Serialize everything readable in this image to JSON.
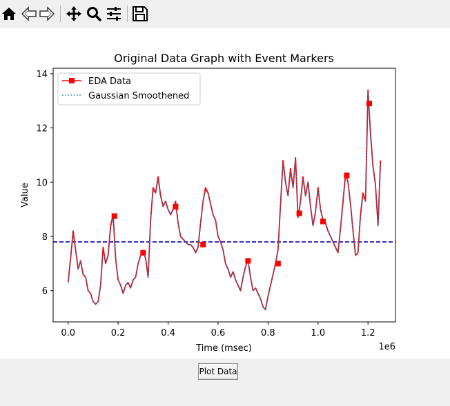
{
  "toolbar": {
    "buttons": [
      {
        "icon": "home-icon"
      },
      {
        "icon": "back-arrow-icon"
      },
      {
        "icon": "forward-arrow-icon"
      },
      {
        "icon": "pan-move-icon"
      },
      {
        "icon": "zoom-magnifier-icon"
      },
      {
        "icon": "configure-subplots-icon"
      },
      {
        "icon": "save-floppy-icon"
      }
    ]
  },
  "plot_button_label": "Plot Data",
  "chart_data": {
    "type": "line",
    "title": "Original Data Graph with Event Markers",
    "xlabel": "Time (msec)",
    "ylabel": "Value",
    "x_offset_text": "1e6",
    "xlim": [
      -0.06,
      1.31
    ],
    "ylim": [
      4.85,
      14.2
    ],
    "xticks": [
      0.0,
      0.2,
      0.4,
      0.6,
      0.8,
      1.0,
      1.2
    ],
    "xtick_labels": [
      "0.0",
      "0.2",
      "0.4",
      "0.6",
      "0.8",
      "1.0",
      "1.2"
    ],
    "yticks": [
      6,
      8,
      10,
      12,
      14
    ],
    "ytick_labels": [
      "6",
      "8",
      "10",
      "12",
      "14"
    ],
    "grid": false,
    "legend_position": "upper-left",
    "threshold_line": {
      "value": 7.8,
      "color": "#0000bf",
      "style": "dashed"
    },
    "series": [
      {
        "name": "EDA Data",
        "color": "#ff0000",
        "style": "solid",
        "marker": "square",
        "x": [
          0.0,
          0.01,
          0.02,
          0.03,
          0.04,
          0.05,
          0.06,
          0.07,
          0.08,
          0.09,
          0.1,
          0.11,
          0.12,
          0.13,
          0.14,
          0.15,
          0.16,
          0.17,
          0.18,
          0.19,
          0.2,
          0.21,
          0.22,
          0.23,
          0.24,
          0.25,
          0.26,
          0.27,
          0.28,
          0.29,
          0.3,
          0.31,
          0.32,
          0.33,
          0.34,
          0.35,
          0.36,
          0.37,
          0.38,
          0.39,
          0.4,
          0.41,
          0.42,
          0.43,
          0.44,
          0.45,
          0.46,
          0.47,
          0.48,
          0.49,
          0.5,
          0.51,
          0.52,
          0.53,
          0.54,
          0.55,
          0.56,
          0.57,
          0.58,
          0.59,
          0.6,
          0.61,
          0.62,
          0.63,
          0.64,
          0.65,
          0.66,
          0.67,
          0.68,
          0.69,
          0.7,
          0.71,
          0.72,
          0.73,
          0.74,
          0.75,
          0.76,
          0.77,
          0.78,
          0.79,
          0.8,
          0.81,
          0.82,
          0.83,
          0.84,
          0.85,
          0.86,
          0.87,
          0.88,
          0.89,
          0.9,
          0.91,
          0.92,
          0.93,
          0.94,
          0.95,
          0.96,
          0.97,
          0.98,
          0.99,
          1.0,
          1.01,
          1.02,
          1.03,
          1.04,
          1.05,
          1.06,
          1.07,
          1.08,
          1.09,
          1.1,
          1.11,
          1.12,
          1.13,
          1.14,
          1.15,
          1.16,
          1.17,
          1.18,
          1.19,
          1.2,
          1.21,
          1.22,
          1.23,
          1.24,
          1.25
        ],
        "y": [
          6.3,
          7.2,
          8.2,
          7.5,
          6.8,
          7.1,
          6.6,
          6.5,
          6.0,
          5.9,
          5.6,
          5.5,
          5.6,
          6.2,
          7.6,
          7.0,
          7.3,
          8.4,
          8.8,
          7.2,
          6.4,
          6.2,
          5.9,
          6.2,
          6.3,
          6.1,
          6.4,
          6.5,
          7.0,
          7.3,
          7.4,
          7.2,
          6.5,
          8.6,
          9.8,
          9.6,
          10.2,
          9.5,
          9.1,
          9.3,
          9.0,
          8.8,
          9.0,
          9.3,
          8.5,
          8.0,
          7.9,
          7.8,
          7.7,
          7.7,
          7.6,
          7.4,
          7.6,
          8.5,
          9.3,
          9.8,
          9.6,
          9.2,
          8.8,
          8.6,
          8.0,
          7.8,
          7.5,
          7.0,
          6.8,
          6.5,
          6.7,
          6.4,
          6.2,
          6.0,
          6.5,
          6.9,
          7.1,
          6.5,
          6.0,
          6.1,
          5.9,
          5.7,
          5.4,
          5.3,
          5.8,
          6.2,
          6.6,
          7.0,
          7.5,
          9.2,
          10.8,
          10.0,
          9.5,
          10.5,
          9.8,
          10.9,
          8.7,
          9.3,
          10.2,
          9.5,
          10.0,
          9.1,
          8.4,
          8.9,
          9.8,
          9.0,
          8.6,
          8.5,
          8.2,
          8.0,
          7.8,
          7.6,
          7.4,
          8.3,
          9.3,
          10.3,
          10.0,
          9.2,
          8.2,
          7.3,
          7.4,
          8.8,
          9.6,
          9.3,
          13.4,
          11.8,
          10.6,
          9.9,
          8.4,
          10.8
        ]
      },
      {
        "name": "Gaussian Smoothened",
        "color": "#1f77b4",
        "style": "dotted",
        "x": [
          0.0,
          0.01,
          0.02,
          0.03,
          0.04,
          0.05,
          0.06,
          0.07,
          0.08,
          0.09,
          0.1,
          0.11,
          0.12,
          0.13,
          0.14,
          0.15,
          0.16,
          0.17,
          0.18,
          0.19,
          0.2,
          0.21,
          0.22,
          0.23,
          0.24,
          0.25,
          0.26,
          0.27,
          0.28,
          0.29,
          0.3,
          0.31,
          0.32,
          0.33,
          0.34,
          0.35,
          0.36,
          0.37,
          0.38,
          0.39,
          0.4,
          0.41,
          0.42,
          0.43,
          0.44,
          0.45,
          0.46,
          0.47,
          0.48,
          0.49,
          0.5,
          0.51,
          0.52,
          0.53,
          0.54,
          0.55,
          0.56,
          0.57,
          0.58,
          0.59,
          0.6,
          0.61,
          0.62,
          0.63,
          0.64,
          0.65,
          0.66,
          0.67,
          0.68,
          0.69,
          0.7,
          0.71,
          0.72,
          0.73,
          0.74,
          0.75,
          0.76,
          0.77,
          0.78,
          0.79,
          0.8,
          0.81,
          0.82,
          0.83,
          0.84,
          0.85,
          0.86,
          0.87,
          0.88,
          0.89,
          0.9,
          0.91,
          0.92,
          0.93,
          0.94,
          0.95,
          0.96,
          0.97,
          0.98,
          0.99,
          1.0,
          1.01,
          1.02,
          1.03,
          1.04,
          1.05,
          1.06,
          1.07,
          1.08,
          1.09,
          1.1,
          1.11,
          1.12,
          1.13,
          1.14,
          1.15,
          1.16,
          1.17,
          1.18,
          1.19,
          1.2,
          1.21,
          1.22,
          1.23,
          1.24,
          1.25
        ],
        "y": [
          6.3,
          7.2,
          8.1,
          7.5,
          6.8,
          7.1,
          6.6,
          6.5,
          6.0,
          5.9,
          5.6,
          5.5,
          5.6,
          6.2,
          7.5,
          7.0,
          7.3,
          8.3,
          8.7,
          7.2,
          6.4,
          6.2,
          5.9,
          6.2,
          6.3,
          6.1,
          6.4,
          6.5,
          7.0,
          7.3,
          7.4,
          7.2,
          6.5,
          8.6,
          9.7,
          9.6,
          10.1,
          9.5,
          9.1,
          9.3,
          9.0,
          8.8,
          9.0,
          9.3,
          8.5,
          8.0,
          7.9,
          7.8,
          7.7,
          7.7,
          7.6,
          7.4,
          7.6,
          8.5,
          9.3,
          9.7,
          9.6,
          9.2,
          8.8,
          8.6,
          8.0,
          7.8,
          7.5,
          7.0,
          6.8,
          6.5,
          6.7,
          6.4,
          6.2,
          6.0,
          6.5,
          6.9,
          7.1,
          6.5,
          6.0,
          6.1,
          5.9,
          5.7,
          5.4,
          5.3,
          5.8,
          6.2,
          6.6,
          7.0,
          7.5,
          9.2,
          10.7,
          10.0,
          9.5,
          10.4,
          9.8,
          10.8,
          8.7,
          9.3,
          10.1,
          9.5,
          10.0,
          9.1,
          8.4,
          8.9,
          9.7,
          9.0,
          8.6,
          8.5,
          8.2,
          8.0,
          7.8,
          7.6,
          7.4,
          8.3,
          9.2,
          10.2,
          10.0,
          9.2,
          8.2,
          7.3,
          7.4,
          8.7,
          9.5,
          9.3,
          13.3,
          11.7,
          10.6,
          9.9,
          8.4,
          10.7
        ]
      }
    ],
    "event_markers": {
      "x": [
        0.185,
        0.3,
        0.43,
        0.54,
        0.72,
        0.84,
        0.925,
        1.02,
        1.115,
        1.205
      ],
      "y": [
        8.75,
        7.4,
        9.1,
        7.7,
        7.1,
        7.0,
        8.85,
        8.55,
        10.25,
        12.9
      ]
    }
  }
}
